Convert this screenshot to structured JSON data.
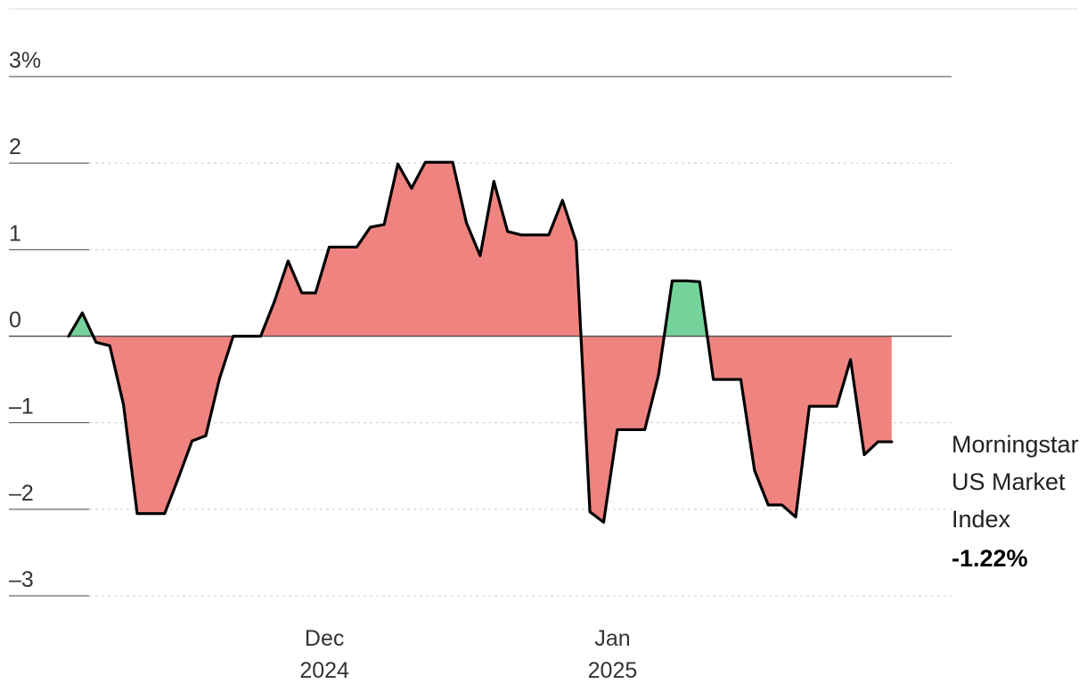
{
  "chart_data": {
    "type": "area",
    "title": "",
    "xlabel": "",
    "ylabel": "",
    "ylim": [
      -3,
      3
    ],
    "y_ticks": [
      3,
      2,
      1,
      0,
      -1,
      -2,
      -3
    ],
    "y_tick_labels": [
      "3%",
      "2",
      "1",
      "0",
      "–1",
      "–2",
      "–3"
    ],
    "x_tick_labels": [
      {
        "month": "Dec",
        "year": "2024",
        "date": "2024-12-01"
      },
      {
        "month": "Jan",
        "year": "2025",
        "date": "2025-01-01"
      }
    ],
    "grid": true,
    "colors": {
      "positive": "#74d39a",
      "negative": "#ef8380",
      "line": "#000000",
      "zero_line": "#555555",
      "grid": "#cccccc"
    },
    "series": [
      {
        "name": "Morningstar US Market Index",
        "label_lines": [
          "Morningstar",
          "US Market",
          "Index"
        ],
        "last_value_label": "-1.22%",
        "x": [
          "2024-11-05",
          "2024-11-06",
          "2024-11-07",
          "2024-11-08",
          "2024-11-11",
          "2024-11-12",
          "2024-11-13",
          "2024-11-14",
          "2024-11-15",
          "2024-11-18",
          "2024-11-19",
          "2024-11-20",
          "2024-11-21",
          "2024-11-22",
          "2024-11-25",
          "2024-11-26",
          "2024-11-27",
          "2024-11-29",
          "2024-12-02",
          "2024-12-03",
          "2024-12-04",
          "2024-12-05",
          "2024-12-06",
          "2024-12-09",
          "2024-12-10",
          "2024-12-11",
          "2024-12-12",
          "2024-12-13",
          "2024-12-16",
          "2024-12-17",
          "2024-12-18",
          "2024-12-19",
          "2024-12-20",
          "2024-12-23",
          "2024-12-24",
          "2024-12-26",
          "2024-12-27",
          "2024-12-30",
          "2024-12-31",
          "2025-01-02",
          "2025-01-03",
          "2025-01-06",
          "2025-01-07",
          "2025-01-08",
          "2025-01-10",
          "2025-01-13",
          "2025-01-14",
          "2025-01-15",
          "2025-01-16",
          "2025-01-17",
          "2025-01-21",
          "2025-01-22",
          "2025-01-23",
          "2025-01-24",
          "2025-01-27",
          "2025-01-28",
          "2025-01-29",
          "2025-01-30",
          "2025-01-31",
          "2025-02-03",
          "2025-02-04",
          "2025-02-05",
          "2025-02-06",
          "2025-02-07"
        ],
        "values": [
          0.0,
          0.27,
          -0.07,
          -0.11,
          -0.79,
          -2.05,
          -2.05,
          -2.05,
          -1.64,
          -1.21,
          -1.15,
          -0.49,
          0.0,
          0.0,
          0.0,
          0.4,
          0.87,
          0.5,
          0.5,
          1.03,
          1.03,
          1.03,
          1.26,
          1.29,
          1.99,
          1.71,
          2.01,
          2.01,
          2.01,
          1.31,
          0.93,
          1.79,
          1.21,
          1.17,
          1.17,
          1.17,
          1.57,
          1.09,
          -2.03,
          -2.15,
          -1.08,
          -1.08,
          -1.08,
          -0.45,
          0.64,
          0.64,
          0.63,
          -0.5,
          -0.5,
          -0.5,
          -1.55,
          -1.95,
          -1.95,
          -2.09,
          -0.81,
          -0.81,
          -0.81,
          -0.27,
          -1.37,
          -1.22,
          -1.22,
          null,
          null,
          null
        ]
      }
    ]
  }
}
